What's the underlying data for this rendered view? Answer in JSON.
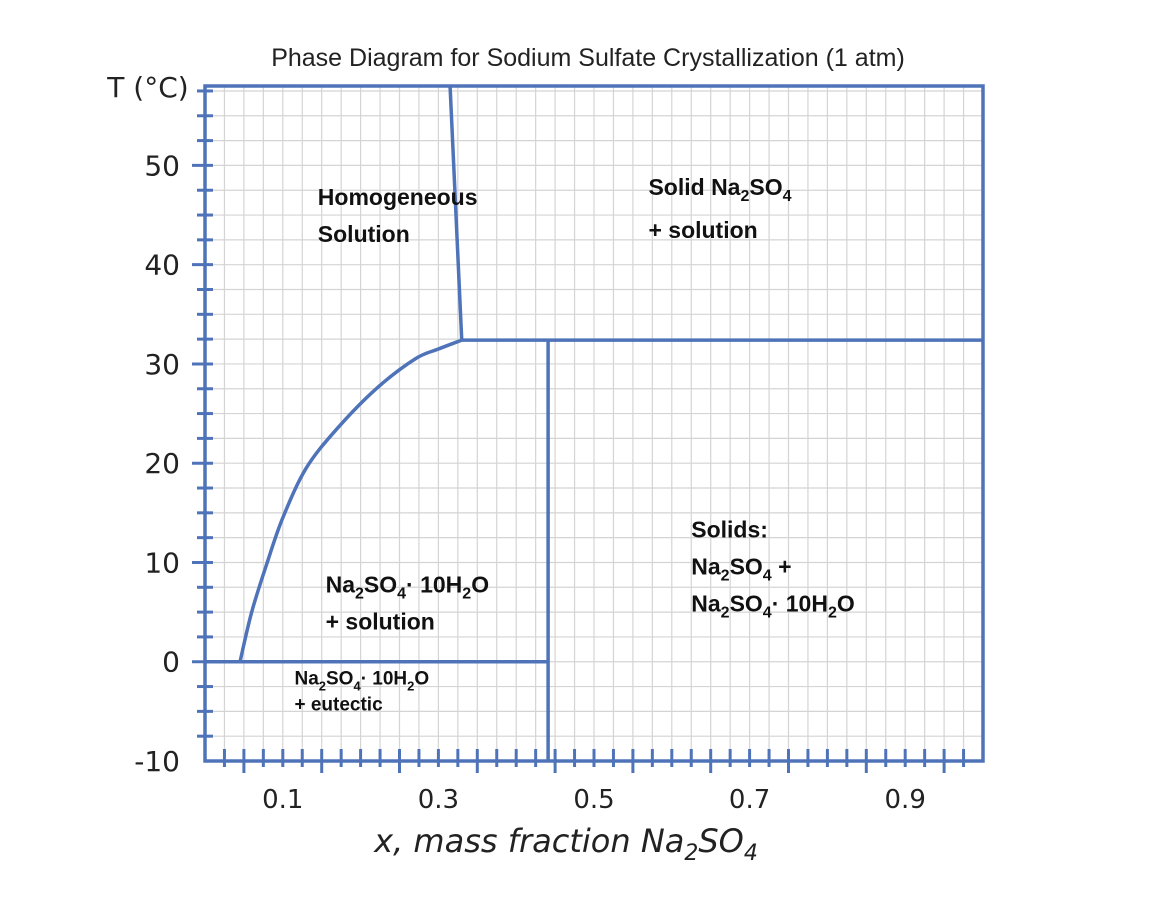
{
  "chart_data": {
    "type": "phase-diagram",
    "title": "Phase Diagram for Sodium Sulfate Crystallization (1 atm)",
    "ylabel": "T (°C)",
    "xlabel": "x, mass fraction Na2SO4",
    "xlabel_parts": {
      "main": "x, mass fraction Na",
      "sub1": "2",
      "mid": "SO",
      "sub2": "4"
    },
    "xlim": [
      0,
      1.0
    ],
    "ylim": [
      -10,
      58
    ],
    "grid": true,
    "x_ticks": [
      0.1,
      0.3,
      0.5,
      0.7,
      0.9
    ],
    "x_tick_labels": [
      "0.1",
      "0.3",
      "0.5",
      "0.7",
      "0.9"
    ],
    "y_ticks": [
      -10,
      0,
      10,
      20,
      30,
      40,
      50
    ],
    "y_tick_labels": [
      "-10",
      "0",
      "10",
      "20",
      "30",
      "40",
      "50"
    ],
    "series": [
      {
        "x": [
          0.045,
          0.06,
          0.08,
          0.1,
          0.13,
          0.17,
          0.22,
          0.27,
          0.3,
          0.33
        ],
        "y": [
          0,
          5,
          10,
          14.5,
          19.5,
          23.5,
          27.5,
          30.5,
          31.5,
          32.4
        ]
      },
      {
        "x": [
          0.33,
          0.315
        ],
        "y": [
          32.4,
          58
        ]
      },
      {
        "x": [
          0.33,
          1.0
        ],
        "y": [
          32.4,
          32.4
        ]
      },
      {
        "x": [
          0.441,
          0.441
        ],
        "y": [
          -10,
          32.4
        ]
      },
      {
        "x": [
          0.0,
          0.441
        ],
        "y": [
          0,
          0
        ]
      }
    ],
    "annotations": [
      {
        "x": 0.145,
        "y": 46,
        "lines": [
          {
            "text": "Homogeneous"
          },
          {
            "text": "Solution"
          }
        ]
      },
      {
        "x": 0.57,
        "y": 47,
        "lines": [
          {
            "parts": [
              {
                "t": "Solid Na"
              },
              {
                "t": "2",
                "sub": true
              },
              {
                "t": "SO"
              },
              {
                "t": "4",
                "sub": true
              }
            ]
          },
          {
            "parts": [
              {
                "t": "+ solution"
              }
            ]
          }
        ]
      },
      {
        "x": 0.625,
        "y": 12.5,
        "lines": [
          {
            "parts": [
              {
                "t": "Solids:"
              }
            ]
          },
          {
            "parts": [
              {
                "t": "Na"
              },
              {
                "t": "2",
                "sub": true
              },
              {
                "t": "SO"
              },
              {
                "t": "4",
                "sub": true
              },
              {
                "t": " +"
              }
            ]
          },
          {
            "parts": [
              {
                "t": "Na"
              },
              {
                "t": "2",
                "sub": true
              },
              {
                "t": "SO"
              },
              {
                "t": "4",
                "sub": true
              },
              {
                "t": "· 10H"
              },
              {
                "t": "2",
                "sub": true
              },
              {
                "t": "O"
              }
            ]
          }
        ]
      },
      {
        "x": 0.155,
        "y": 7,
        "lines": [
          {
            "parts": [
              {
                "t": "Na"
              },
              {
                "t": "2",
                "sub": true
              },
              {
                "t": "SO"
              },
              {
                "t": "4",
                "sub": true
              },
              {
                "t": "· 10H"
              },
              {
                "t": "2",
                "sub": true
              },
              {
                "t": "O"
              }
            ]
          },
          {
            "parts": [
              {
                "t": "+ solution"
              }
            ]
          }
        ]
      },
      {
        "x": 0.115,
        "y": -2.3,
        "small": true,
        "lines": [
          {
            "parts": [
              {
                "t": "Na"
              },
              {
                "t": "2",
                "sub": true
              },
              {
                "t": "SO"
              },
              {
                "t": "4",
                "sub": true
              },
              {
                "t": "· 10H"
              },
              {
                "t": "2",
                "sub": true
              },
              {
                "t": "O"
              }
            ]
          },
          {
            "parts": [
              {
                "t": "+ eutectic"
              }
            ]
          }
        ]
      }
    ],
    "colors": {
      "line": "#4f73b8",
      "grid": "#d4d4d4",
      "text": "#222222"
    }
  }
}
